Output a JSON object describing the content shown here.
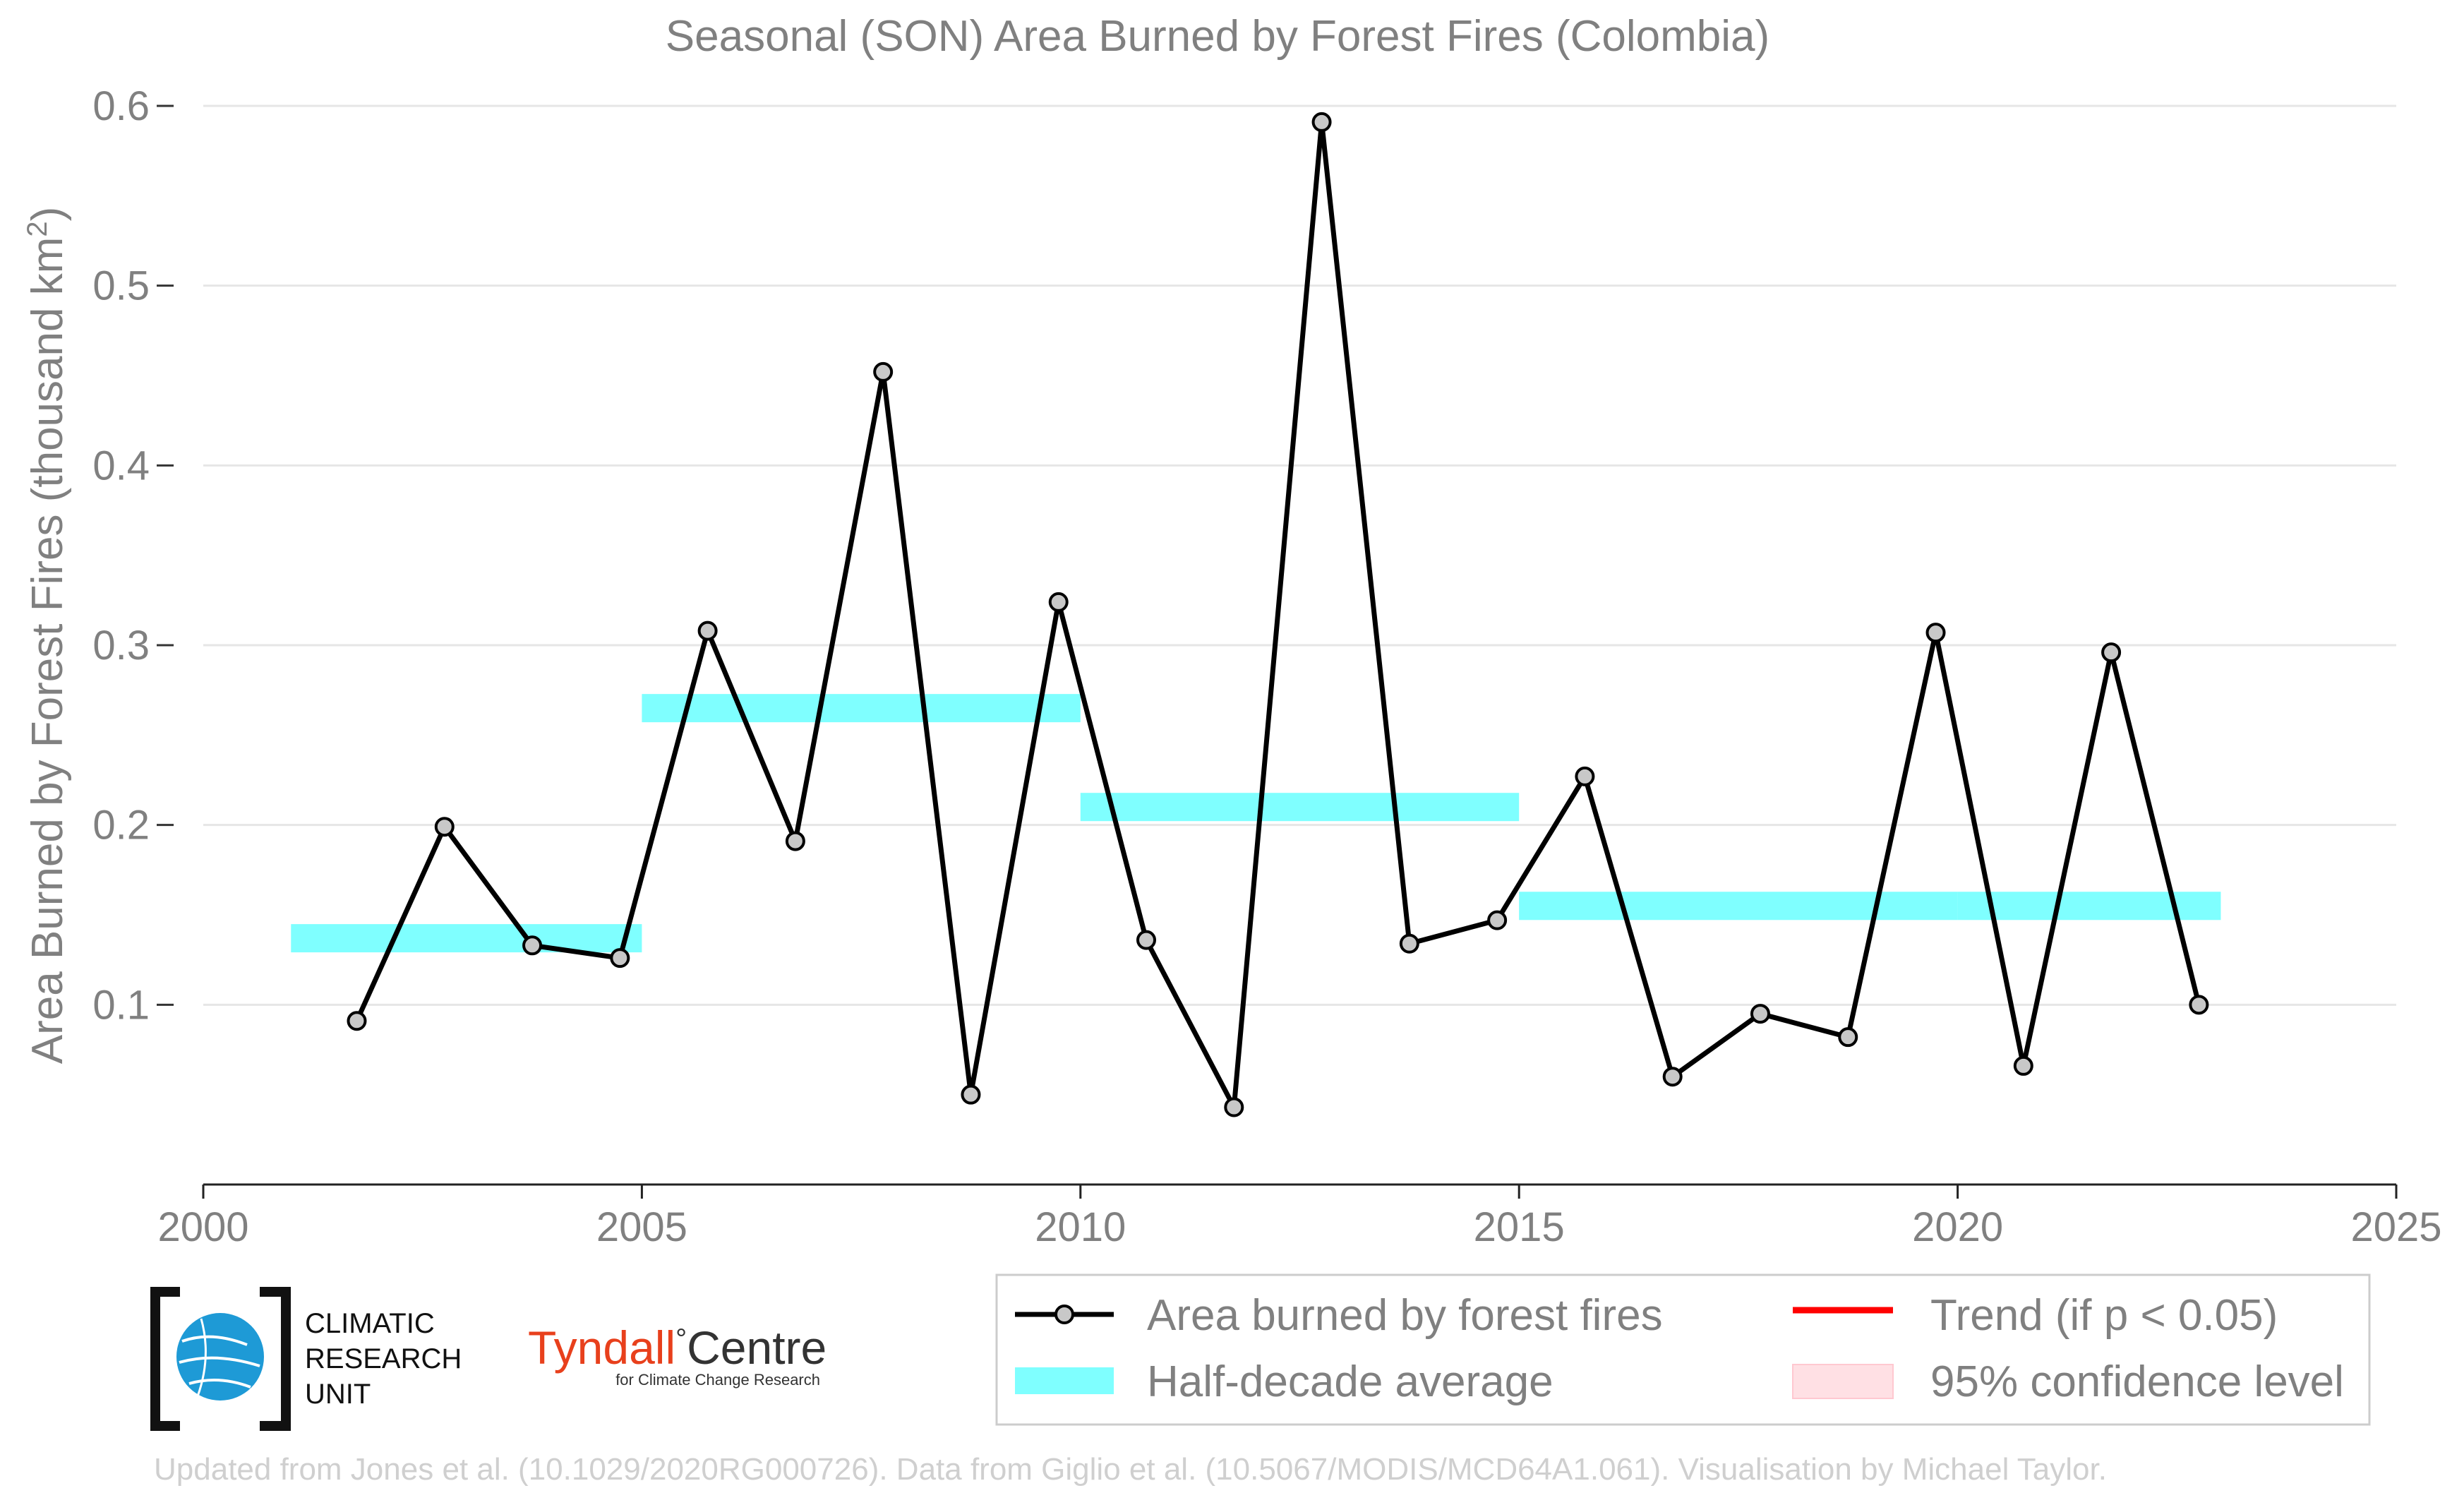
{
  "chart_data": {
    "type": "line",
    "title": "Seasonal (SON) Area Burned by Forest Fires (Colombia)",
    "ylabel_main": "Area Burned by Forest Fires (thousand km",
    "ylabel_sup": "2",
    "ylabel_close": ")",
    "xlabel": "",
    "xlim": [
      2000,
      2025
    ],
    "ylim": [
      0.0,
      0.6
    ],
    "x_ticks": [
      2000,
      2005,
      2010,
      2015,
      2020,
      2025
    ],
    "y_ticks": [
      0.1,
      0.2,
      0.3,
      0.4,
      0.5,
      0.6
    ],
    "y_tick_labels": [
      "0.1",
      "0.2",
      "0.3",
      "0.4",
      "0.5",
      "0.6"
    ],
    "grid": "horizontal",
    "series": [
      {
        "name": "Area burned by forest fires",
        "color": "#000000",
        "marker_fill": "#c8c8c8",
        "x": [
          2001.75,
          2002.75,
          2003.75,
          2004.75,
          2005.75,
          2006.75,
          2007.75,
          2008.75,
          2009.75,
          2010.75,
          2011.75,
          2012.75,
          2013.75,
          2014.75,
          2015.75,
          2016.75,
          2017.75,
          2018.75,
          2019.75,
          2020.75,
          2021.75,
          2022.75
        ],
        "y": [
          0.091,
          0.199,
          0.133,
          0.126,
          0.308,
          0.191,
          0.452,
          0.05,
          0.324,
          0.136,
          0.043,
          0.591,
          0.134,
          0.147,
          0.227,
          0.06,
          0.095,
          0.082,
          0.307,
          0.066,
          0.296,
          0.1
        ]
      }
    ],
    "half_decade_average": {
      "name": "Half-decade average",
      "color": "#7fffff",
      "segments": [
        {
          "x_start": 2001.0,
          "x_end": 2005.0,
          "y": 0.137
        },
        {
          "x_start": 2005.0,
          "x_end": 2010.0,
          "y": 0.265
        },
        {
          "x_start": 2010.0,
          "x_end": 2015.0,
          "y": 0.21
        },
        {
          "x_start": 2015.0,
          "x_end": 2020.0,
          "y": 0.155
        },
        {
          "x_start": 2020.0,
          "x_end": 2023.0,
          "y": 0.155
        }
      ]
    },
    "legend": {
      "placement": "bottom-right",
      "entries": [
        {
          "label": "Area burned by forest fires",
          "kind": "line-marker",
          "color": "#000000"
        },
        {
          "label": "Trend (if p < 0.05)",
          "kind": "line",
          "color": "#ff0000"
        },
        {
          "label": "Half-decade average",
          "kind": "band",
          "color": "#7fffff"
        },
        {
          "label": "95% confidence level",
          "kind": "patch",
          "color": "#ffe0e4"
        }
      ]
    },
    "footer": "Updated from Jones et al. (10.1029/2020RG000726). Data from Giglio et al. (10.5067/MODIS/MCD64A1.061). Visualisation by Michael Taylor."
  },
  "logos": {
    "cru": {
      "line1": "CLIMATIC",
      "line2": "RESEARCH",
      "line3": "UNIT",
      "icon": "globe-icon",
      "color": "#1e9ad6"
    },
    "tyndall": {
      "word1": "Tyndall",
      "degree": "°",
      "word2": "Centre",
      "subtitle": "for Climate Change Research",
      "color1": "#e8401c",
      "color2": "#333333"
    }
  }
}
